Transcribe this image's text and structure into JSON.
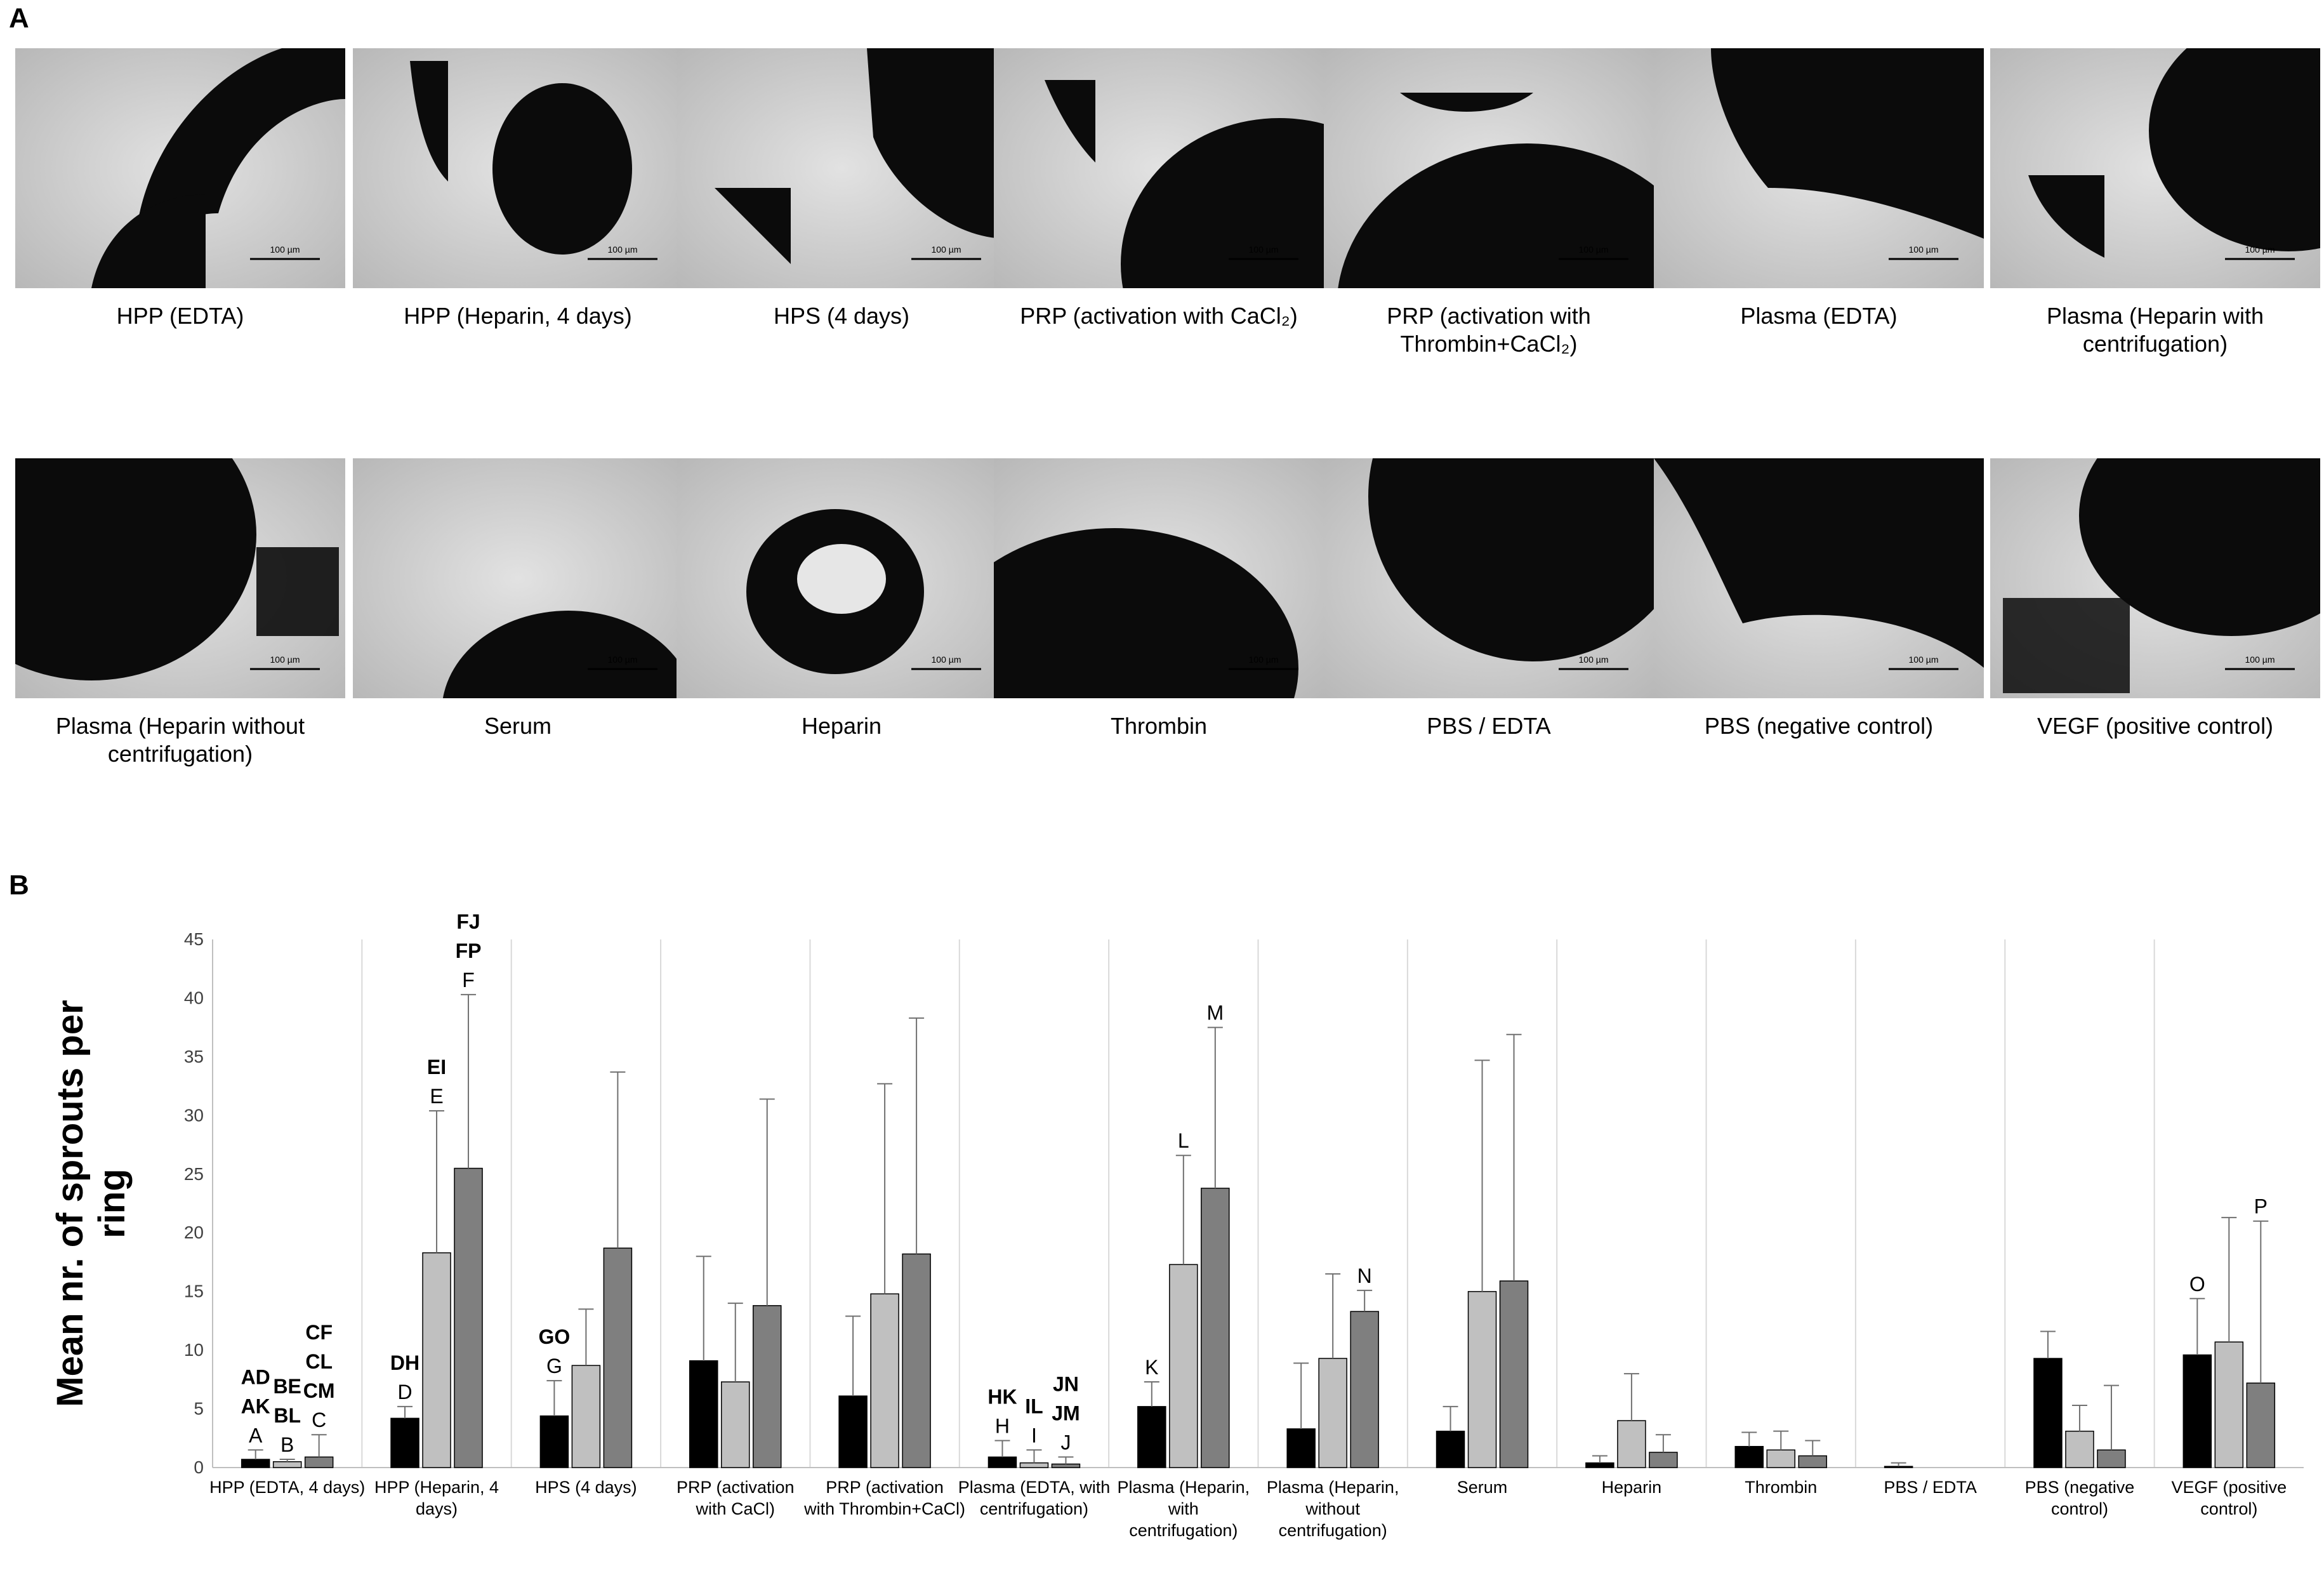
{
  "panel_a": {
    "label": "A",
    "scale_bar_label": "100 µm",
    "row1": [
      {
        "caption": "HPP (EDTA)"
      },
      {
        "caption": "HPP (Heparin, 4 days)"
      },
      {
        "caption": "HPS (4 days)"
      },
      {
        "caption": "PRP (activation with CaCl₂)"
      },
      {
        "caption": "PRP (activation with Thrombin+CaCl₂)"
      },
      {
        "caption": "Plasma (EDTA)"
      },
      {
        "caption": "Plasma (Heparin with centrifugation)"
      }
    ],
    "row2": [
      {
        "caption": "Plasma (Heparin without centrifugation)"
      },
      {
        "caption": "Serum"
      },
      {
        "caption": "Heparin"
      },
      {
        "caption": "Thrombin"
      },
      {
        "caption": "PBS / EDTA"
      },
      {
        "caption": "PBS (negative control)"
      },
      {
        "caption": "VEGF (positive control)"
      }
    ]
  },
  "panel_b": {
    "label": "B"
  },
  "chart_data": {
    "type": "bar",
    "ylabel": "Mean nr. of sprouts per ring",
    "ylim": [
      0,
      45
    ],
    "yticks": [
      0,
      5,
      10,
      15,
      20,
      25,
      30,
      35,
      40,
      45
    ],
    "grid": false,
    "legend": "none",
    "categories": [
      "HPP (EDTA, 4 days)",
      "HPP (Heparin, 4 days)",
      "HPS (4 days)",
      "PRP (activation with CaCl)",
      "PRP (activation with Thrombin+CaCl)",
      "Plasma (EDTA, with centrifugation)",
      "Plasma (Heparin, with centrifugation)",
      "Plasma (Heparin, without centrifugation)",
      "Serum",
      "Heparin",
      "Thrombin",
      "PBS / EDTA",
      "PBS (negative control)",
      "VEGF (positive control)"
    ],
    "series": [
      {
        "color": "#000000",
        "values": [
          0.7,
          4.2,
          4.4,
          9.1,
          6.1,
          0.9,
          5.2,
          3.3,
          3.1,
          0.4,
          1.8,
          0.1,
          9.3,
          9.6
        ],
        "errors": [
          0.8,
          1.0,
          3.0,
          8.9,
          6.8,
          1.4,
          2.1,
          5.6,
          2.1,
          0.6,
          1.2,
          0.3,
          2.3,
          4.8
        ]
      },
      {
        "color": "#c0c0c0",
        "values": [
          0.5,
          18.3,
          8.7,
          7.3,
          14.8,
          0.4,
          17.3,
          9.3,
          15.0,
          4.0,
          1.5,
          0.0,
          3.1,
          10.7
        ],
        "errors": [
          0.2,
          12.1,
          4.8,
          6.7,
          17.9,
          1.1,
          9.3,
          7.2,
          19.7,
          4.0,
          1.6,
          0.0,
          2.2,
          10.6
        ]
      },
      {
        "color": "#7f7f7f",
        "values": [
          0.9,
          25.5,
          18.7,
          13.8,
          18.2,
          0.3,
          23.8,
          13.3,
          15.9,
          1.3,
          1.0,
          0.0,
          1.5,
          7.2
        ],
        "errors": [
          1.9,
          14.8,
          15.0,
          17.6,
          20.1,
          0.6,
          13.7,
          1.8,
          21.0,
          1.5,
          1.3,
          0.0,
          5.5,
          13.8
        ]
      }
    ],
    "significance_labels": [
      {
        "category": 0,
        "series": 0,
        "lines": [
          "AD",
          "AK",
          "A"
        ]
      },
      {
        "category": 0,
        "series": 1,
        "lines": [
          "BE",
          "BL",
          "B"
        ]
      },
      {
        "category": 0,
        "series": 2,
        "lines": [
          "CF",
          "CL",
          "CM",
          "C"
        ]
      },
      {
        "category": 1,
        "series": 0,
        "lines": [
          "DH",
          "D"
        ]
      },
      {
        "category": 1,
        "series": 1,
        "lines": [
          "EI",
          "E"
        ]
      },
      {
        "category": 1,
        "series": 2,
        "lines": [
          "FJ",
          "FP",
          "F"
        ]
      },
      {
        "category": 2,
        "series": 0,
        "lines": [
          "GO",
          "G"
        ]
      },
      {
        "category": 5,
        "series": 0,
        "lines": [
          "HK",
          "H"
        ]
      },
      {
        "category": 5,
        "series": 1,
        "lines": [
          "IL",
          "I"
        ]
      },
      {
        "category": 5,
        "series": 2,
        "lines": [
          "JN",
          "JM",
          "J"
        ]
      },
      {
        "category": 6,
        "series": 0,
        "lines": [
          "K"
        ]
      },
      {
        "category": 6,
        "series": 1,
        "lines": [
          "L"
        ]
      },
      {
        "category": 6,
        "series": 2,
        "lines": [
          "M"
        ]
      },
      {
        "category": 7,
        "series": 2,
        "lines": [
          "N"
        ]
      },
      {
        "category": 13,
        "series": 0,
        "lines": [
          "O"
        ]
      },
      {
        "category": 13,
        "series": 2,
        "lines": [
          "P"
        ]
      }
    ]
  }
}
